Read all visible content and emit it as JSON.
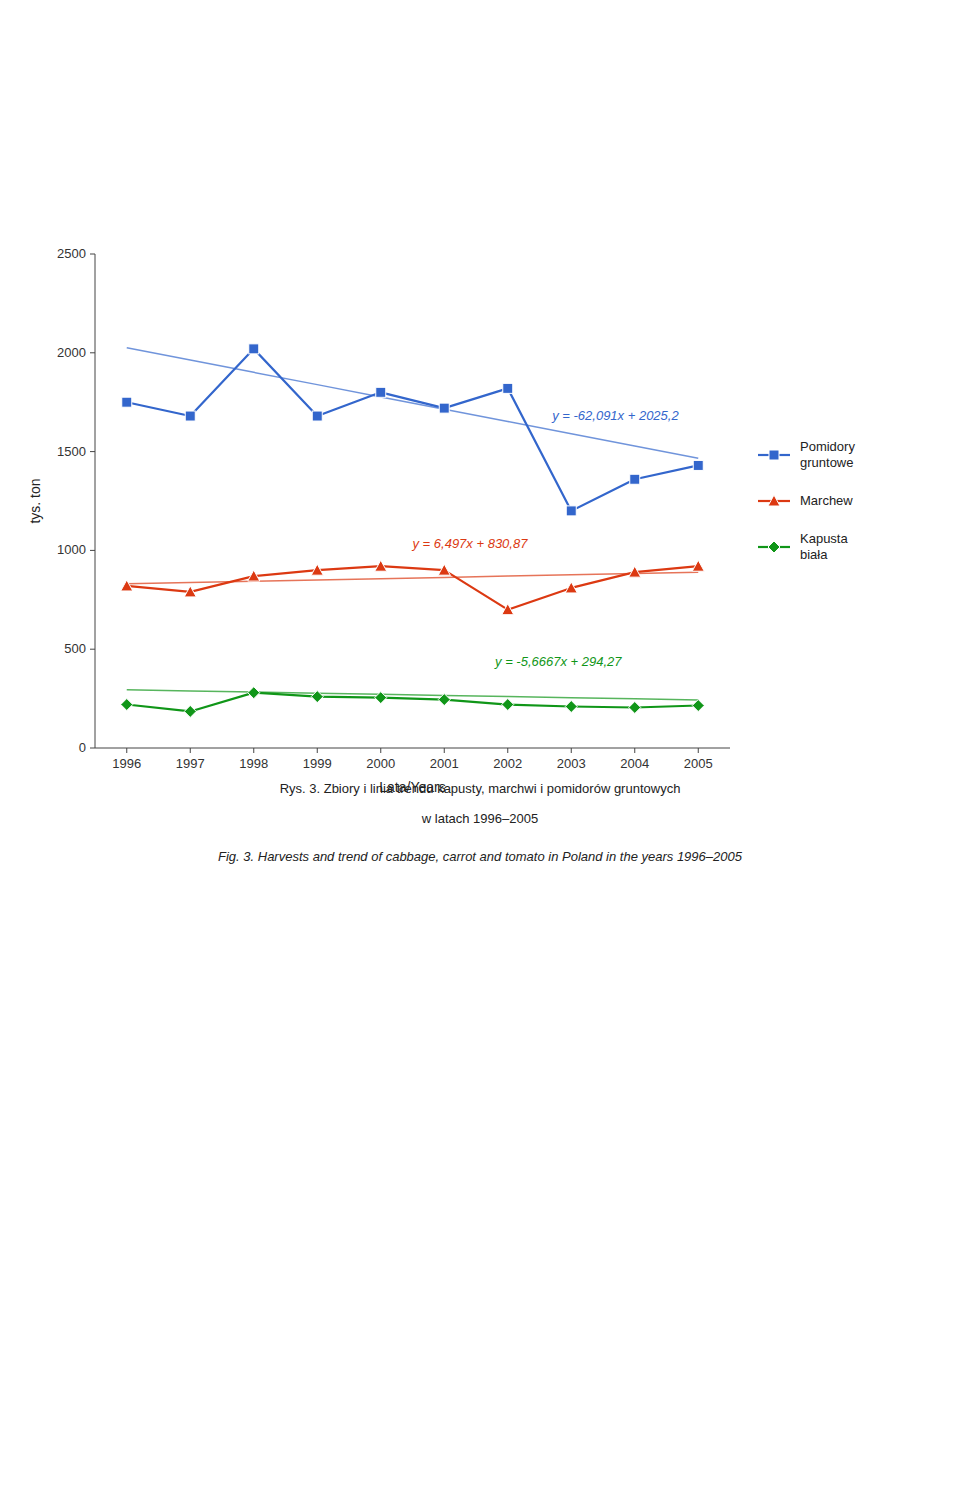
{
  "chart_data": {
    "type": "line",
    "categories": [
      1996,
      1997,
      1998,
      1999,
      2000,
      2001,
      2002,
      2003,
      2004,
      2005
    ],
    "series": [
      {
        "name": "Pomidory\ngruntowe",
        "marker": "square",
        "line_style": "solid",
        "values": [
          1750,
          1680,
          2020,
          1680,
          1800,
          1720,
          1820,
          1200,
          1360,
          1430
        ]
      },
      {
        "name": "Marchew",
        "marker": "triangle",
        "line_style": "solid",
        "values": [
          820,
          790,
          870,
          900,
          920,
          900,
          700,
          810,
          890,
          920
        ]
      },
      {
        "name": "Kapusta\nbiała",
        "marker": "diamond",
        "line_style": "solid",
        "values": [
          220,
          185,
          280,
          260,
          255,
          245,
          220,
          210,
          205,
          215
        ]
      },
      {
        "marker": "none",
        "line_style": "solid",
        "values": [
          2025.2,
          1963.109,
          1901.018,
          1838.927,
          1776.836,
          1714.745,
          1652.654,
          1590.563,
          1528.472,
          1466.381
        ]
      },
      {
        "marker": "none",
        "line_style": "solid",
        "values": [
          830.87,
          837.367,
          843.864,
          850.361,
          856.858,
          863.355,
          869.852,
          876.349,
          882.846,
          889.343
        ]
      },
      {
        "marker": "none",
        "line_style": "solid",
        "values": [
          294.27,
          288.6033,
          282.9366,
          277.2699,
          271.6032,
          265.9365,
          260.2698,
          254.6031,
          248.9364,
          243.2697
        ]
      }
    ],
    "annotations": [
      "y = -62,091x + 2025,2",
      "y = 6,497x + 830,87",
      "y = -5,6667x + 294,27"
    ],
    "ylabel": "tys. ton",
    "xlabel": "Lata/Years",
    "ylim": [
      0,
      2500
    ],
    "yticks": [
      0,
      500,
      1000,
      1500,
      2000,
      2500
    ],
    "grid": false,
    "legend": "right",
    "captions": [
      "Rys. 3. Zbiory i linia trendu kapusty, marchwi i pomidorów gruntowych",
      "w latach 1996–2005",
      "Fig. 3. Harvests and trend of cabbage, carrot and tomato in Poland in the years 1996–2005"
    ]
  }
}
